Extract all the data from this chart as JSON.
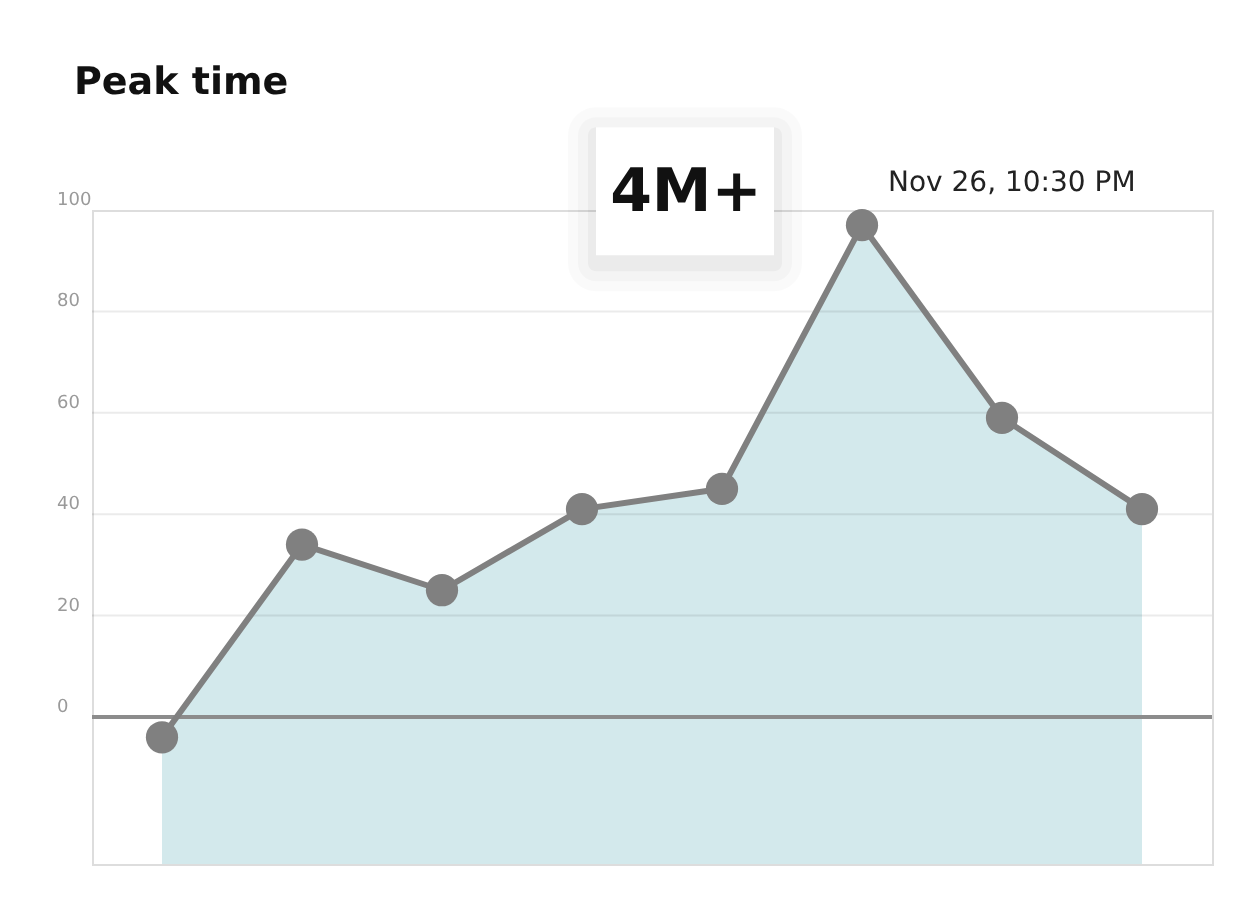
{
  "chart_data": {
    "type": "line",
    "title": "Peak time",
    "categories": [
      null,
      null,
      null,
      null,
      null,
      null,
      null,
      null
    ],
    "series": [
      {
        "color": "#808080",
        "values": [
          -4,
          34,
          25,
          41,
          45,
          97,
          59,
          41
        ],
        "lower": [
          -29,
          -29,
          -29,
          -29,
          -29,
          -29,
          -29,
          -29
        ],
        "upper": [
          -4,
          34,
          25,
          41,
          45,
          97,
          59,
          41
        ]
      }
    ],
    "ylim": [
      -29,
      100
    ],
    "yticks": [
      0,
      20,
      40,
      60,
      80,
      100
    ],
    "grid": "y",
    "marker": "circle",
    "line_style": "solid",
    "tick_labels": "y",
    "ref_lines": [
      {
        "axis": "y",
        "value": 0,
        "color": "#8c8c8c"
      }
    ],
    "annotations": [
      "4M+",
      "Nov 26, 10:30 PM"
    ]
  }
}
